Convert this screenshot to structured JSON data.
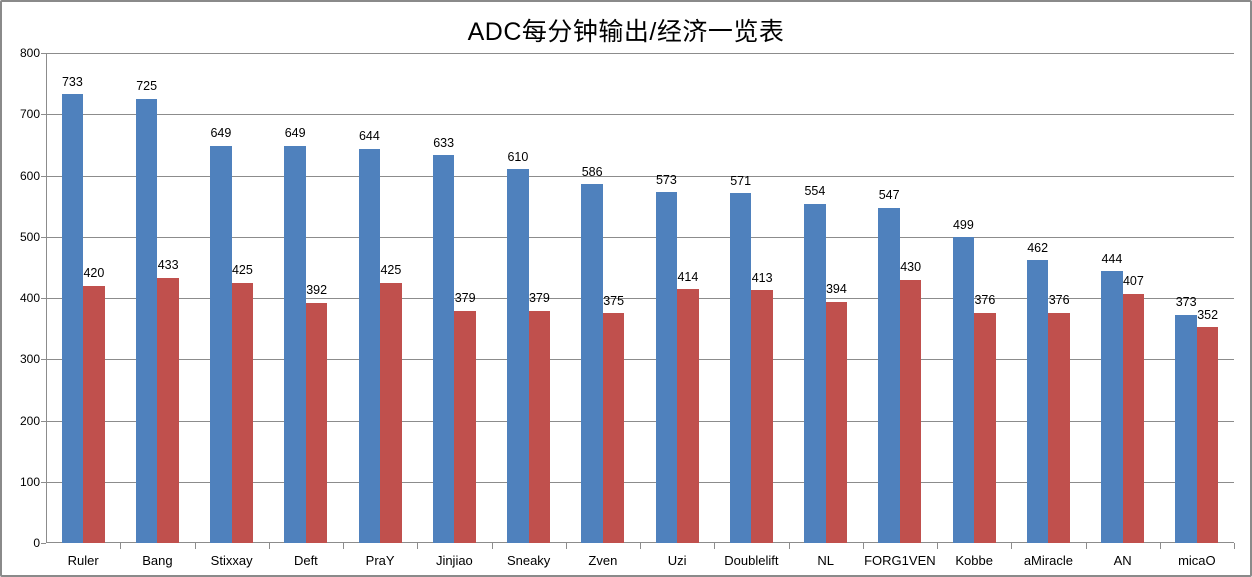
{
  "title": "ADC每分钟输出/经济一览表",
  "chart_data": {
    "type": "bar",
    "title": "ADC每分钟输出/经济一览表",
    "categories": [
      "Ruler",
      "Bang",
      "Stixxay",
      "Deft",
      "PraY",
      "Jinjiao",
      "Sneaky",
      "Zven",
      "Uzi",
      "Doublelift",
      "NL",
      "FORG1VEN",
      "Kobbe",
      "aMiracle",
      "AN",
      "micaO"
    ],
    "series": [
      {
        "id": "series-1",
        "color": "#4F81BD",
        "values": [
          733,
          725,
          649,
          649,
          644,
          633,
          610,
          586,
          573,
          571,
          554,
          547,
          499,
          462,
          444,
          373
        ]
      },
      {
        "id": "series-2",
        "color": "#C0504D",
        "values": [
          420,
          433,
          425,
          392,
          425,
          379,
          379,
          375,
          414,
          413,
          394,
          430,
          376,
          376,
          407,
          352
        ]
      }
    ],
    "y_axis": {
      "min": 0,
      "max": 800,
      "step": 100
    },
    "data_labels": true,
    "legend": "none",
    "gridlines": "horizontal",
    "gridline_color": "#8C8C8C",
    "axis_color": "#8C8C8C",
    "text_color": "#000000",
    "background_color": "#FFFFFF",
    "border_color": "#8A8A8A"
  }
}
